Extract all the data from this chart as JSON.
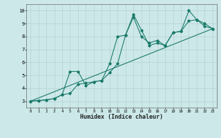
{
  "xlabel": "Humidex (Indice chaleur)",
  "xlim": [
    -0.5,
    23.5
  ],
  "ylim": [
    2.5,
    10.5
  ],
  "xticks": [
    0,
    1,
    2,
    3,
    4,
    5,
    6,
    7,
    8,
    9,
    10,
    11,
    12,
    13,
    14,
    15,
    16,
    17,
    18,
    19,
    20,
    21,
    22,
    23
  ],
  "yticks": [
    3,
    4,
    5,
    6,
    7,
    8,
    9,
    10
  ],
  "bg_color": "#cce8e8",
  "grid_color": "#b8d4d4",
  "line_color": "#1a7a6a",
  "line1_x": [
    0,
    1,
    2,
    3,
    4,
    5,
    6,
    7,
    8,
    9,
    10,
    11,
    12,
    13,
    14,
    15,
    16,
    17,
    18,
    19,
    20,
    21,
    22,
    23
  ],
  "line1_y": [
    3.0,
    3.05,
    3.1,
    3.2,
    3.5,
    5.3,
    5.3,
    4.2,
    4.5,
    4.6,
    5.9,
    8.0,
    8.1,
    9.7,
    8.5,
    7.3,
    7.5,
    7.3,
    8.3,
    8.4,
    10.0,
    9.3,
    9.0,
    8.6
  ],
  "line2_x": [
    0,
    1,
    2,
    3,
    4,
    5,
    6,
    7,
    8,
    9,
    10,
    11,
    12,
    13,
    14,
    15,
    16,
    17,
    18,
    19,
    20,
    21,
    22,
    23
  ],
  "line2_y": [
    3.0,
    3.05,
    3.1,
    3.2,
    3.5,
    3.6,
    4.3,
    4.4,
    4.5,
    4.6,
    5.2,
    5.9,
    8.1,
    9.5,
    8.0,
    7.5,
    7.7,
    7.3,
    8.3,
    8.4,
    9.2,
    9.3,
    8.8,
    8.6
  ],
  "line3_x": [
    0,
    23
  ],
  "line3_y": [
    3.0,
    8.6
  ]
}
